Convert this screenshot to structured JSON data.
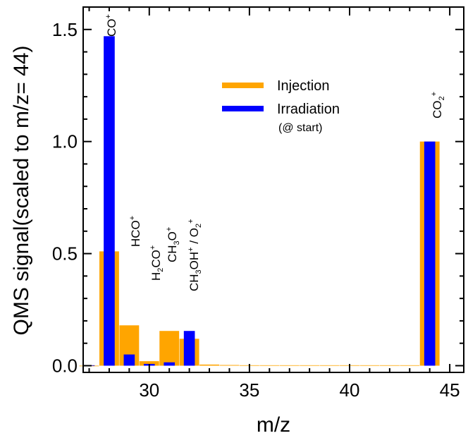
{
  "chart_data": {
    "type": "bar",
    "xlabel": "m/z",
    "ylabel": "QMS signal(scaled to m/z= 44)",
    "xlim": [
      26.7,
      45.7
    ],
    "ylim": [
      -0.03,
      1.6
    ],
    "xticks": [
      30,
      35,
      40,
      45
    ],
    "yticks": [
      0.0,
      0.5,
      1.0,
      1.5
    ],
    "yticks_labels": [
      "0.0",
      "0.5",
      "1.0",
      "1.5"
    ],
    "grid": false,
    "legend_position": "top-center",
    "series": [
      {
        "name": "Injection",
        "color": "#FFA500",
        "x": [
          27,
          28,
          29,
          30,
          31,
          32,
          33,
          34,
          35,
          36,
          37,
          38,
          39,
          40,
          41,
          42,
          43,
          44
        ],
        "values": [
          0.0,
          0.51,
          0.18,
          0.02,
          0.155,
          0.12,
          0.005,
          0.003,
          0.002,
          0.002,
          0.002,
          0.002,
          0.002,
          0.002,
          0.002,
          0.002,
          0.002,
          1.0
        ]
      },
      {
        "name": "Irradiation",
        "color": "#0000FF",
        "x": [
          27,
          28,
          29,
          30,
          31,
          32,
          44
        ],
        "values": [
          0.002,
          1.47,
          0.05,
          0.008,
          0.015,
          0.155,
          1.0
        ]
      }
    ],
    "legend": {
      "entries": [
        "Injection",
        "Irradiation"
      ],
      "note": "(@ start)"
    },
    "annotations": [
      {
        "label": "CO",
        "sup": "+",
        "x": 28,
        "y": 1.5
      },
      {
        "label": "HCO",
        "sup": "+",
        "x": 29,
        "y": 0.54
      },
      {
        "label": "H2CO",
        "sup": "+",
        "x": 30,
        "y": 0.38
      },
      {
        "label": "CH3O",
        "sup": "+",
        "x": 31,
        "y": 0.48
      },
      {
        "label": "CH3OH / O2",
        "sup": "+",
        "x": 32,
        "y": 0.35
      },
      {
        "label": "CO2",
        "sup": "+",
        "x": 44,
        "y": 1.14
      }
    ]
  }
}
